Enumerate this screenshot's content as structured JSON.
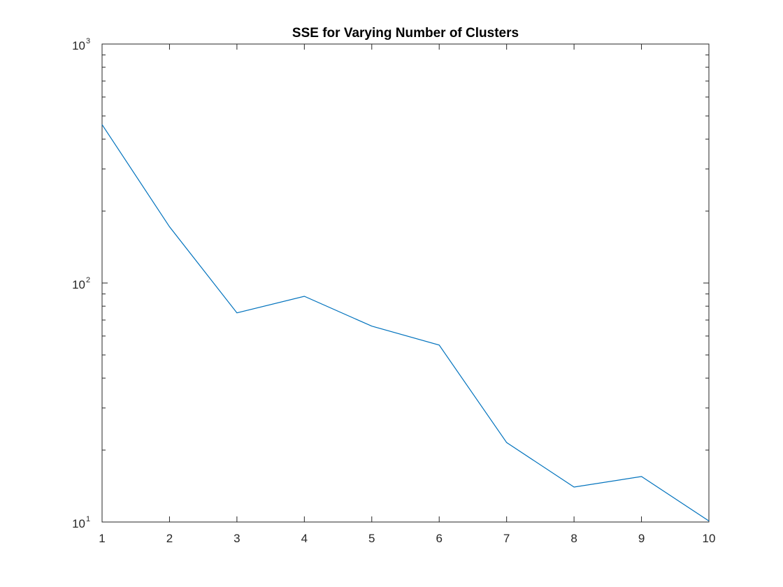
{
  "chart_data": {
    "type": "line",
    "title": "SSE for Varying Number of Clusters",
    "xlabel": "",
    "ylabel": "",
    "yscale": "log",
    "xlim": [
      1,
      10
    ],
    "ylim": [
      10,
      1000
    ],
    "x": [
      1,
      2,
      3,
      4,
      5,
      6,
      7,
      8,
      9,
      10
    ],
    "series": [
      {
        "values": [
          460,
          172,
          75,
          88,
          66,
          55,
          21.5,
          14,
          15.5,
          10.1
        ],
        "color": "#0072bd"
      }
    ],
    "x_ticks": [
      "1",
      "2",
      "3",
      "4",
      "5",
      "6",
      "7",
      "8",
      "9",
      "10"
    ],
    "y_ticks": [
      {
        "value": 10,
        "base": "10",
        "exp": "1"
      },
      {
        "value": 100,
        "base": "10",
        "exp": "2"
      },
      {
        "value": 1000,
        "base": "10",
        "exp": "3"
      }
    ],
    "grid": false,
    "box": true
  }
}
